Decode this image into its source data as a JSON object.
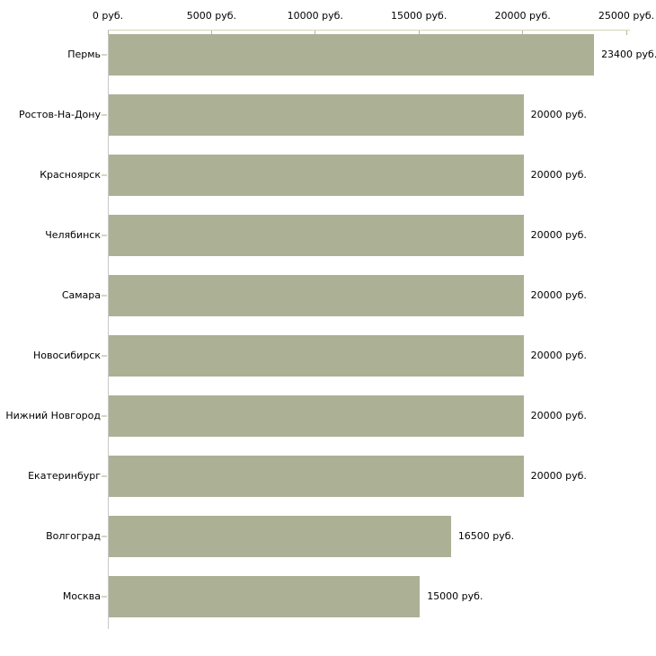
{
  "chart_data": {
    "type": "bar",
    "orientation": "horizontal",
    "title": "",
    "xlabel": "",
    "ylabel": "",
    "unit": "руб.",
    "categories": [
      "Пермь",
      "Ростов-На-Дону",
      "Красноярск",
      "Челябинск",
      "Самара",
      "Новосибирск",
      "Нижний Новгород",
      "Екатеринбург",
      "Волгоград",
      "Москва"
    ],
    "values": [
      23400,
      20000,
      20000,
      20000,
      20000,
      20000,
      20000,
      20000,
      16500,
      15000
    ],
    "value_labels": [
      "23400 руб.",
      "20000 руб.",
      "20000 руб.",
      "20000 руб.",
      "20000 руб.",
      "20000 руб.",
      "20000 руб.",
      "20000 руб.",
      "16500 руб.",
      "15000 руб."
    ],
    "x_tick_values": [
      0,
      5000,
      10000,
      15000,
      20000,
      25000
    ],
    "x_tick_labels": [
      "0 руб.",
      "5000 руб.",
      "10000 руб.",
      "15000 руб.",
      "20000 руб.",
      "25000 руб."
    ],
    "xlim": [
      0,
      25000
    ],
    "grid": false,
    "legend": false,
    "colors": {
      "bar": "#acb196",
      "axis_line": "#d8d5bd",
      "tick": "#b9b69b",
      "y_axis_line": "#c9c9c9",
      "text": "#000000",
      "background": "#ffffff"
    }
  }
}
